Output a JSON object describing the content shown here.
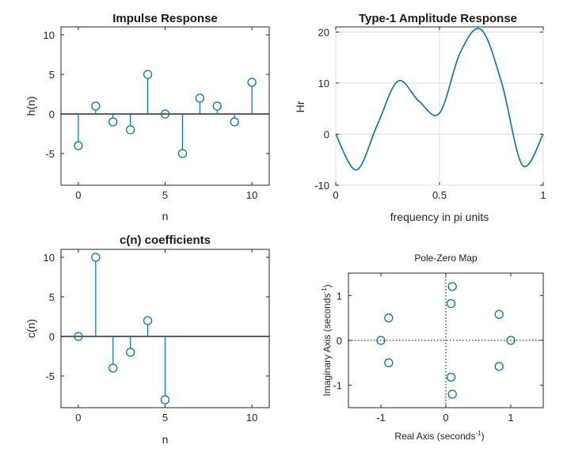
{
  "colors": {
    "series": "#0072bd",
    "axis": "#262626",
    "baseline": "#000000",
    "grid": "#dcdcdc"
  },
  "chart_data": [
    {
      "type": "stem",
      "title": "Impulse Response",
      "xlabel": "n",
      "ylabel": "h(n)",
      "xlim": [
        -1,
        11
      ],
      "ylim": [
        -9,
        11
      ],
      "xticks": [
        0,
        5,
        10
      ],
      "yticks": [
        -5,
        0,
        5,
        10
      ],
      "xtick_labels": [
        "0",
        "5",
        "10"
      ],
      "ytick_labels": [
        "-5",
        "0",
        "5",
        "10"
      ],
      "x": [
        0,
        1,
        2,
        3,
        4,
        5,
        6,
        7,
        8,
        9,
        10
      ],
      "values": [
        -4,
        1,
        -1,
        -2,
        5,
        0,
        -5,
        2,
        1,
        -1,
        4
      ],
      "baseline": 0,
      "grid": false
    },
    {
      "type": "line",
      "title": "Type-1 Amplitude Response",
      "xlabel": "frequency in pi units",
      "ylabel": "Hr",
      "xlim": [
        0,
        1
      ],
      "ylim": [
        -10,
        21
      ],
      "xticks": [
        0,
        0.5,
        1
      ],
      "yticks": [
        -10,
        0,
        10,
        20
      ],
      "xtick_labels": [
        "0",
        "0.5",
        "1"
      ],
      "ytick_labels": [
        "-10",
        "0",
        "10",
        "20"
      ],
      "x": [
        0,
        0.1,
        0.2,
        0.3,
        0.4,
        0.5,
        0.6,
        0.7,
        0.8,
        0.9,
        1.0
      ],
      "values": [
        0,
        -7,
        1.8,
        10.4,
        6.5,
        4.1,
        16,
        20.5,
        10,
        -6.1,
        0
      ],
      "grid": true
    },
    {
      "type": "stem",
      "title": "c(n) coefficients",
      "xlabel": "n",
      "ylabel": "c(n)",
      "xlim": [
        -1,
        11
      ],
      "ylim": [
        -9,
        11
      ],
      "xticks": [
        0,
        5,
        10
      ],
      "yticks": [
        -5,
        0,
        5,
        10
      ],
      "xtick_labels": [
        "0",
        "5",
        "10"
      ],
      "ytick_labels": [
        "-5",
        "0",
        "5",
        "10"
      ],
      "x": [
        0,
        1,
        2,
        3,
        4,
        5
      ],
      "values": [
        0,
        10,
        -4,
        -2,
        2,
        -8
      ],
      "baseline": 0,
      "grid": false
    },
    {
      "type": "scatter",
      "title": "Pole-Zero Map",
      "xlabel": "Real Axis (seconds",
      "ylabel": "Imaginary Axis (seconds",
      "xlabel_unit_exponent": "-1",
      "ylabel_unit_exponent": "-1",
      "xlim": [
        -1.5,
        1.5
      ],
      "ylim": [
        -1.5,
        1.5
      ],
      "xticks": [
        -1,
        0,
        1
      ],
      "yticks": [
        -1,
        0,
        1
      ],
      "xtick_labels": [
        "-1",
        "0",
        "1"
      ],
      "ytick_labels": [
        "-1",
        "0",
        "1"
      ],
      "series": [
        {
          "marker": "circle",
          "x": [
            0.1,
            0.08,
            -0.88,
            -1.0,
            -0.88,
            0.08,
            0.1,
            0.82,
            1.0,
            0.82
          ],
          "y": [
            1.2,
            0.82,
            0.5,
            0,
            -0.5,
            -0.82,
            -1.2,
            0.58,
            0,
            -0.58
          ]
        }
      ],
      "grid": false
    }
  ]
}
